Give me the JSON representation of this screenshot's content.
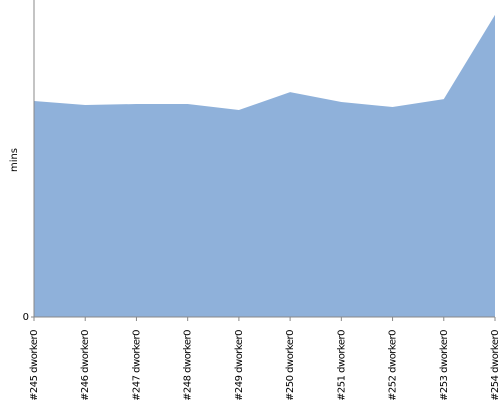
{
  "chart_data": {
    "type": "area",
    "y_label": "mins",
    "categories": [
      "#245 dworker0",
      "#246 dworker0",
      "#247 dworker0",
      "#248 dworker0",
      "#249 dworker0",
      "#250 dworker0",
      "#251 dworker0",
      "#252 dworker0",
      "#253 dworker0",
      "#254 dworker0"
    ],
    "values": [
      10.9,
      10.7,
      10.75,
      10.75,
      10.45,
      11.35,
      10.85,
      10.6,
      11.0,
      15.25
    ],
    "color": "#8fb1da",
    "ylim": [
      0,
      16
    ],
    "yticks": [
      0
    ]
  }
}
